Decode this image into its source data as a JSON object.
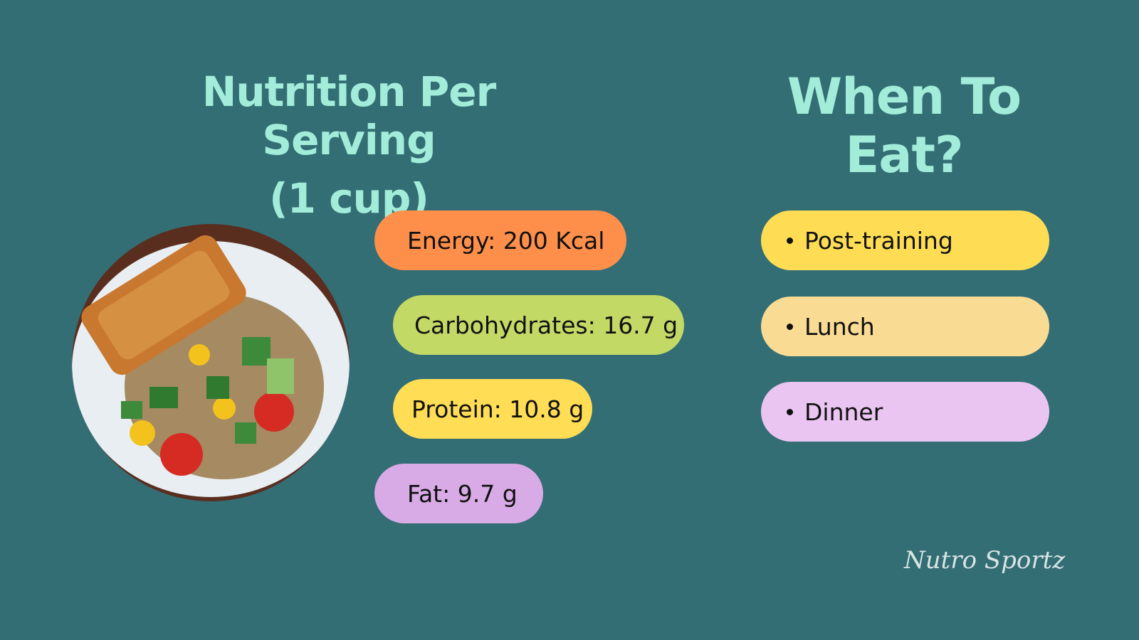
{
  "nutrition": {
    "title_lines": [
      "Nutrition Per Serving",
      "(1 cup)"
    ],
    "items": [
      "Energy: 200 Kcal",
      "Carbohydrates: 16.7 g",
      "Protein: 10.8 g",
      "Fat: 9.7 g"
    ]
  },
  "when_to_eat": {
    "title": "When To Eat?",
    "items": [
      "Post-training",
      "Lunch",
      "Dinner"
    ]
  },
  "brand": "Nutro Sportz"
}
